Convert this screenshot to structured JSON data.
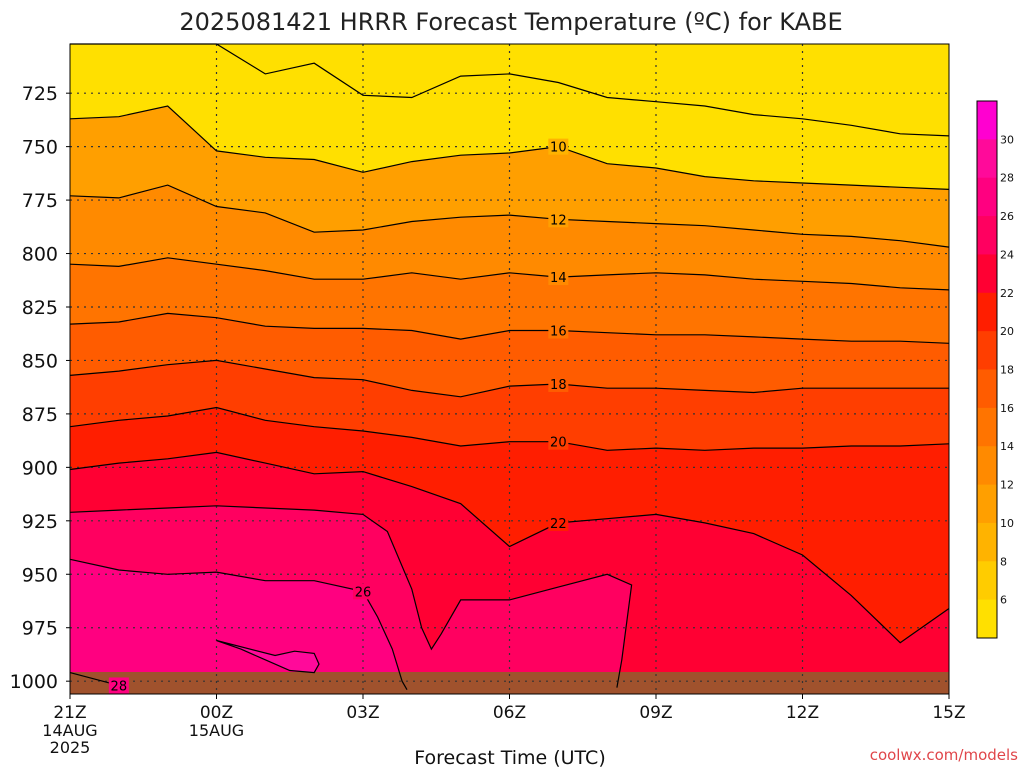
{
  "chart_data": {
    "type": "heatmap",
    "title": "2025081421 HRRR Forecast Temperature (ºC) for KABE",
    "xlabel": "Forecast Time (UTC)",
    "ylabel": "",
    "credit": "coolwx.com/models",
    "x_ticks": [
      {
        "hour": 0,
        "label": "21Z",
        "sub": [
          "14AUG",
          "2025"
        ]
      },
      {
        "hour": 3,
        "label": "00Z",
        "sub": [
          "15AUG"
        ]
      },
      {
        "hour": 6,
        "label": "03Z",
        "sub": []
      },
      {
        "hour": 9,
        "label": "06Z",
        "sub": []
      },
      {
        "hour": 12,
        "label": "09Z",
        "sub": []
      },
      {
        "hour": 15,
        "label": "12Z",
        "sub": []
      },
      {
        "hour": 18,
        "label": "15Z",
        "sub": []
      }
    ],
    "y_ticks": [
      725,
      750,
      775,
      800,
      825,
      850,
      875,
      900,
      925,
      950,
      975,
      1000
    ],
    "ylim": [
      1006,
      702
    ],
    "colorbar": {
      "ticks": [
        6,
        8,
        10,
        12,
        14,
        16,
        18,
        20,
        22,
        24,
        26,
        28,
        30
      ],
      "range": [
        4,
        32
      ],
      "colors": [
        "#ffe000",
        "#ffcc00",
        "#ffb300",
        "#ff9f00",
        "#ff8a00",
        "#ff7400",
        "#ff5c00",
        "#ff3e00",
        "#ff1e00",
        "#ff0033",
        "#ff0060",
        "#ff0080",
        "#ff0a9a",
        "#ff00d0"
      ]
    },
    "contours": [
      {
        "level": 4,
        "label": "",
        "points": [
          [
            0,
            702
          ],
          [
            3,
            702
          ],
          [
            4,
            716
          ],
          [
            5,
            711
          ],
          [
            6,
            726
          ],
          [
            7,
            727
          ],
          [
            8,
            717
          ],
          [
            9,
            716
          ],
          [
            10,
            720
          ],
          [
            11,
            727
          ],
          [
            12,
            729
          ],
          [
            13,
            731
          ],
          [
            14,
            735
          ],
          [
            15,
            737
          ],
          [
            16,
            740
          ],
          [
            17,
            744
          ],
          [
            18,
            745
          ]
        ]
      },
      {
        "level": 10,
        "label": "10",
        "points": [
          [
            0,
            737
          ],
          [
            1,
            736
          ],
          [
            2,
            731
          ],
          [
            3,
            752
          ],
          [
            4,
            755
          ],
          [
            5,
            756
          ],
          [
            6,
            762
          ],
          [
            7,
            757
          ],
          [
            8,
            754
          ],
          [
            9,
            753
          ],
          [
            10,
            750
          ],
          [
            11,
            758
          ],
          [
            12,
            760
          ],
          [
            13,
            764
          ],
          [
            14,
            766
          ],
          [
            15,
            767
          ],
          [
            16,
            768
          ],
          [
            17,
            769
          ],
          [
            18,
            770
          ]
        ]
      },
      {
        "level": 12,
        "label": "12",
        "points": [
          [
            0,
            773
          ],
          [
            1,
            774
          ],
          [
            2,
            768
          ],
          [
            3,
            778
          ],
          [
            4,
            781
          ],
          [
            5,
            790
          ],
          [
            6,
            789
          ],
          [
            7,
            785
          ],
          [
            8,
            783
          ],
          [
            9,
            782
          ],
          [
            10,
            784
          ],
          [
            11,
            785
          ],
          [
            12,
            786
          ],
          [
            13,
            787
          ],
          [
            14,
            789
          ],
          [
            15,
            791
          ],
          [
            16,
            792
          ],
          [
            17,
            794
          ],
          [
            18,
            797
          ]
        ]
      },
      {
        "level": 14,
        "label": "14",
        "points": [
          [
            0,
            805
          ],
          [
            1,
            806
          ],
          [
            2,
            802
          ],
          [
            3,
            805
          ],
          [
            4,
            808
          ],
          [
            5,
            812
          ],
          [
            6,
            812
          ],
          [
            7,
            809
          ],
          [
            8,
            812
          ],
          [
            9,
            809
          ],
          [
            10,
            811
          ],
          [
            11,
            810
          ],
          [
            12,
            809
          ],
          [
            13,
            810
          ],
          [
            14,
            812
          ],
          [
            15,
            813
          ],
          [
            16,
            814
          ],
          [
            17,
            816
          ],
          [
            18,
            817
          ]
        ]
      },
      {
        "level": 16,
        "label": "16",
        "points": [
          [
            0,
            833
          ],
          [
            1,
            832
          ],
          [
            2,
            828
          ],
          [
            3,
            830
          ],
          [
            4,
            834
          ],
          [
            5,
            835
          ],
          [
            6,
            835
          ],
          [
            7,
            836
          ],
          [
            8,
            840
          ],
          [
            9,
            836
          ],
          [
            10,
            836
          ],
          [
            11,
            837
          ],
          [
            12,
            838
          ],
          [
            13,
            838
          ],
          [
            14,
            839
          ],
          [
            15,
            840
          ],
          [
            16,
            841
          ],
          [
            17,
            841
          ],
          [
            18,
            842
          ]
        ]
      },
      {
        "level": 18,
        "label": "18",
        "points": [
          [
            0,
            857
          ],
          [
            1,
            855
          ],
          [
            2,
            852
          ],
          [
            3,
            850
          ],
          [
            4,
            854
          ],
          [
            5,
            858
          ],
          [
            6,
            859
          ],
          [
            7,
            864
          ],
          [
            8,
            867
          ],
          [
            9,
            862
          ],
          [
            10,
            861
          ],
          [
            11,
            863
          ],
          [
            12,
            863
          ],
          [
            13,
            864
          ],
          [
            14,
            865
          ],
          [
            15,
            863
          ],
          [
            16,
            863
          ],
          [
            17,
            863
          ],
          [
            18,
            863
          ]
        ]
      },
      {
        "level": 20,
        "label": "20",
        "points": [
          [
            0,
            881
          ],
          [
            1,
            878
          ],
          [
            2,
            876
          ],
          [
            3,
            872
          ],
          [
            4,
            878
          ],
          [
            5,
            881
          ],
          [
            6,
            883
          ],
          [
            7,
            886
          ],
          [
            8,
            890
          ],
          [
            9,
            888
          ],
          [
            10,
            888
          ],
          [
            11,
            892
          ],
          [
            12,
            891
          ],
          [
            13,
            892
          ],
          [
            14,
            891
          ],
          [
            15,
            891
          ],
          [
            16,
            890
          ],
          [
            17,
            890
          ],
          [
            18,
            889
          ]
        ]
      },
      {
        "level": 22,
        "label": "22",
        "points": [
          [
            0,
            901
          ],
          [
            1,
            898
          ],
          [
            2,
            896
          ],
          [
            3,
            893
          ],
          [
            4,
            898
          ],
          [
            5,
            903
          ],
          [
            6,
            902
          ],
          [
            7,
            909
          ],
          [
            8,
            917
          ],
          [
            9,
            937
          ],
          [
            10,
            926
          ],
          [
            11,
            924
          ],
          [
            12,
            922
          ],
          [
            13,
            926
          ],
          [
            14,
            931
          ],
          [
            15,
            941
          ],
          [
            16,
            960
          ],
          [
            17,
            982
          ],
          [
            18,
            966
          ]
        ]
      },
      {
        "level": 24,
        "label": "",
        "points": [
          [
            0,
            921
          ],
          [
            1,
            920
          ],
          [
            2,
            919
          ],
          [
            3,
            918
          ],
          [
            4,
            919
          ],
          [
            5,
            920
          ],
          [
            6,
            922
          ],
          [
            6.5,
            930
          ],
          [
            7,
            957
          ],
          [
            7.2,
            975
          ],
          [
            7.4,
            985
          ],
          [
            7.6,
            978
          ],
          [
            8,
            962
          ],
          [
            9,
            962
          ],
          [
            10,
            956
          ],
          [
            11,
            950
          ],
          [
            11.5,
            955
          ],
          [
            11.3,
            990
          ],
          [
            11.2,
            1003
          ]
        ]
      },
      {
        "level": 26,
        "label": "26",
        "points": [
          [
            0,
            943
          ],
          [
            1,
            948
          ],
          [
            2,
            950
          ],
          [
            3,
            949
          ],
          [
            4,
            953
          ],
          [
            5,
            953
          ],
          [
            6,
            958
          ],
          [
            6.3,
            970
          ],
          [
            6.6,
            985
          ],
          [
            6.8,
            1000
          ],
          [
            6.9,
            1004
          ]
        ]
      },
      {
        "level": 28,
        "label": "28",
        "points": [
          [
            0,
            996
          ],
          [
            1,
            1002
          ]
        ]
      },
      {
        "level": 28,
        "label": "",
        "points": [
          [
            3,
            981
          ],
          [
            3.5,
            985
          ],
          [
            4,
            990
          ],
          [
            4.5,
            995
          ],
          [
            5,
            996
          ],
          [
            5.1,
            992
          ],
          [
            5.0,
            987
          ],
          [
            4.6,
            986
          ],
          [
            4.2,
            988
          ]
        ]
      }
    ]
  }
}
